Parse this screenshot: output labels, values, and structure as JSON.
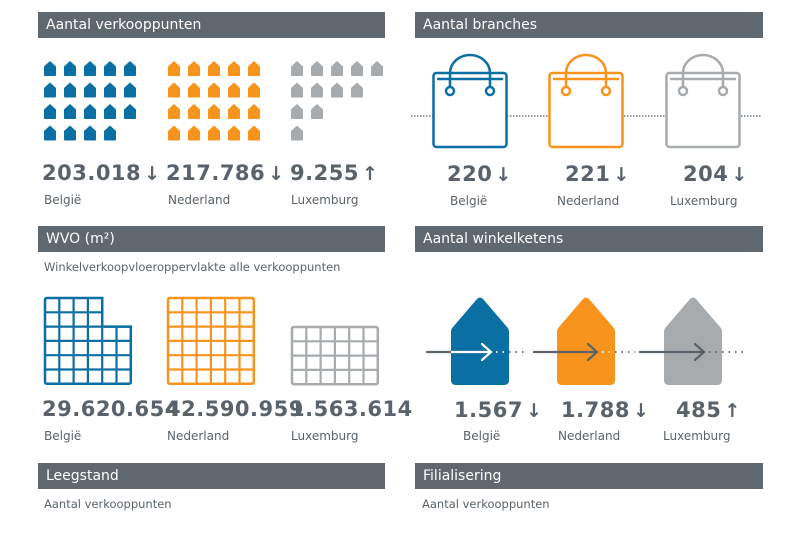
{
  "colors": {
    "belgium": "#0a6fa3",
    "netherlands": "#f7941d",
    "luxembourg": "#a7abae",
    "header_bg": "#5f676f",
    "text": "#5a626b"
  },
  "sections": {
    "verkooppunten": {
      "title": "Aantal verkooppunten",
      "items": [
        {
          "country": "België",
          "value": "203.018",
          "trend": "↓",
          "trend_name": "down",
          "icon_count": 19
        },
        {
          "country": "Nederland",
          "value": "217.786",
          "trend": "↓",
          "trend_name": "down",
          "icon_count": 20
        },
        {
          "country": "Luxemburg",
          "value": "9.255",
          "trend": "↑",
          "trend_name": "up",
          "icon_count": 12
        }
      ]
    },
    "branches": {
      "title": "Aantal branches",
      "items": [
        {
          "country": "België",
          "value": "220",
          "trend": "↓",
          "trend_name": "down"
        },
        {
          "country": "Nederland",
          "value": "221",
          "trend": "↓",
          "trend_name": "down"
        },
        {
          "country": "Luxemburg",
          "value": "204",
          "trend": "↓",
          "trend_name": "down"
        }
      ]
    },
    "wvo": {
      "title": "WVO (m²)",
      "subtitle": "Winkelverkoopvloeroppervlakte alle verkooppunten",
      "items": [
        {
          "country": "België",
          "value": "29.620.654"
        },
        {
          "country": "Nederland",
          "value": "42.590.959"
        },
        {
          "country": "Luxemburg",
          "value": "1.563.614"
        }
      ]
    },
    "winkelketens": {
      "title": "Aantal winkelketens",
      "items": [
        {
          "country": "België",
          "value": "1.567",
          "trend": "↓",
          "trend_name": "down"
        },
        {
          "country": "Nederland",
          "value": "1.788",
          "trend": "↓",
          "trend_name": "down"
        },
        {
          "country": "Luxemburg",
          "value": "485",
          "trend": "↑",
          "trend_name": "up"
        }
      ]
    },
    "leegstand": {
      "title": "Leegstand",
      "subtitle": "Aantal verkooppunten"
    },
    "filialisering": {
      "title": "Filialisering",
      "subtitle": "Aantal verkooppunten"
    }
  }
}
